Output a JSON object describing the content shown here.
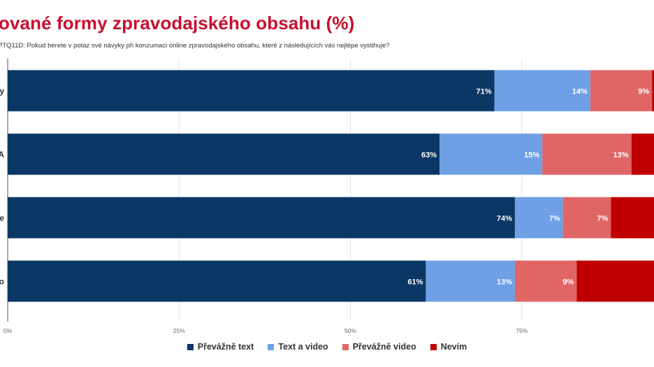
{
  "title": "ované formy zpravodajského obsahu (%)",
  "subtitle": "PTQ11D: Pokud berete v potaz své návyky při konzumaci online zpravodajského obsahu, které z následujících vás nejlépe vystihuje?",
  "colors": {
    "Převážně text": "#0b3764",
    "Text a video": "#6fa0e6",
    "Převážně video": "#e06666",
    "Nevím": "#c00000"
  },
  "chart_data": {
    "type": "bar",
    "orientation": "horizontal",
    "stacked": true,
    "categories": [
      "y",
      "A",
      "e",
      "o"
    ],
    "series": [
      {
        "name": "Převážně text",
        "values": [
          71,
          63,
          74,
          61
        ],
        "labels": [
          "71%",
          "63%",
          "74%",
          "61%"
        ]
      },
      {
        "name": "Text a video",
        "values": [
          14,
          15,
          7,
          13
        ],
        "labels": [
          "14%",
          "15%",
          "7%",
          "13%"
        ]
      },
      {
        "name": "Převážně video",
        "values": [
          9,
          13,
          7,
          9
        ],
        "labels": [
          "9%",
          "13%",
          "7%",
          "9%"
        ]
      },
      {
        "name": "Nevím",
        "values": [
          6,
          9,
          12,
          17
        ],
        "labels": [
          "",
          "",
          "",
          ""
        ]
      }
    ],
    "xticks": [
      "0%",
      "25%",
      "50%",
      "75%"
    ],
    "xlim": [
      0,
      100
    ],
    "grid": true,
    "legend": "bottom"
  }
}
